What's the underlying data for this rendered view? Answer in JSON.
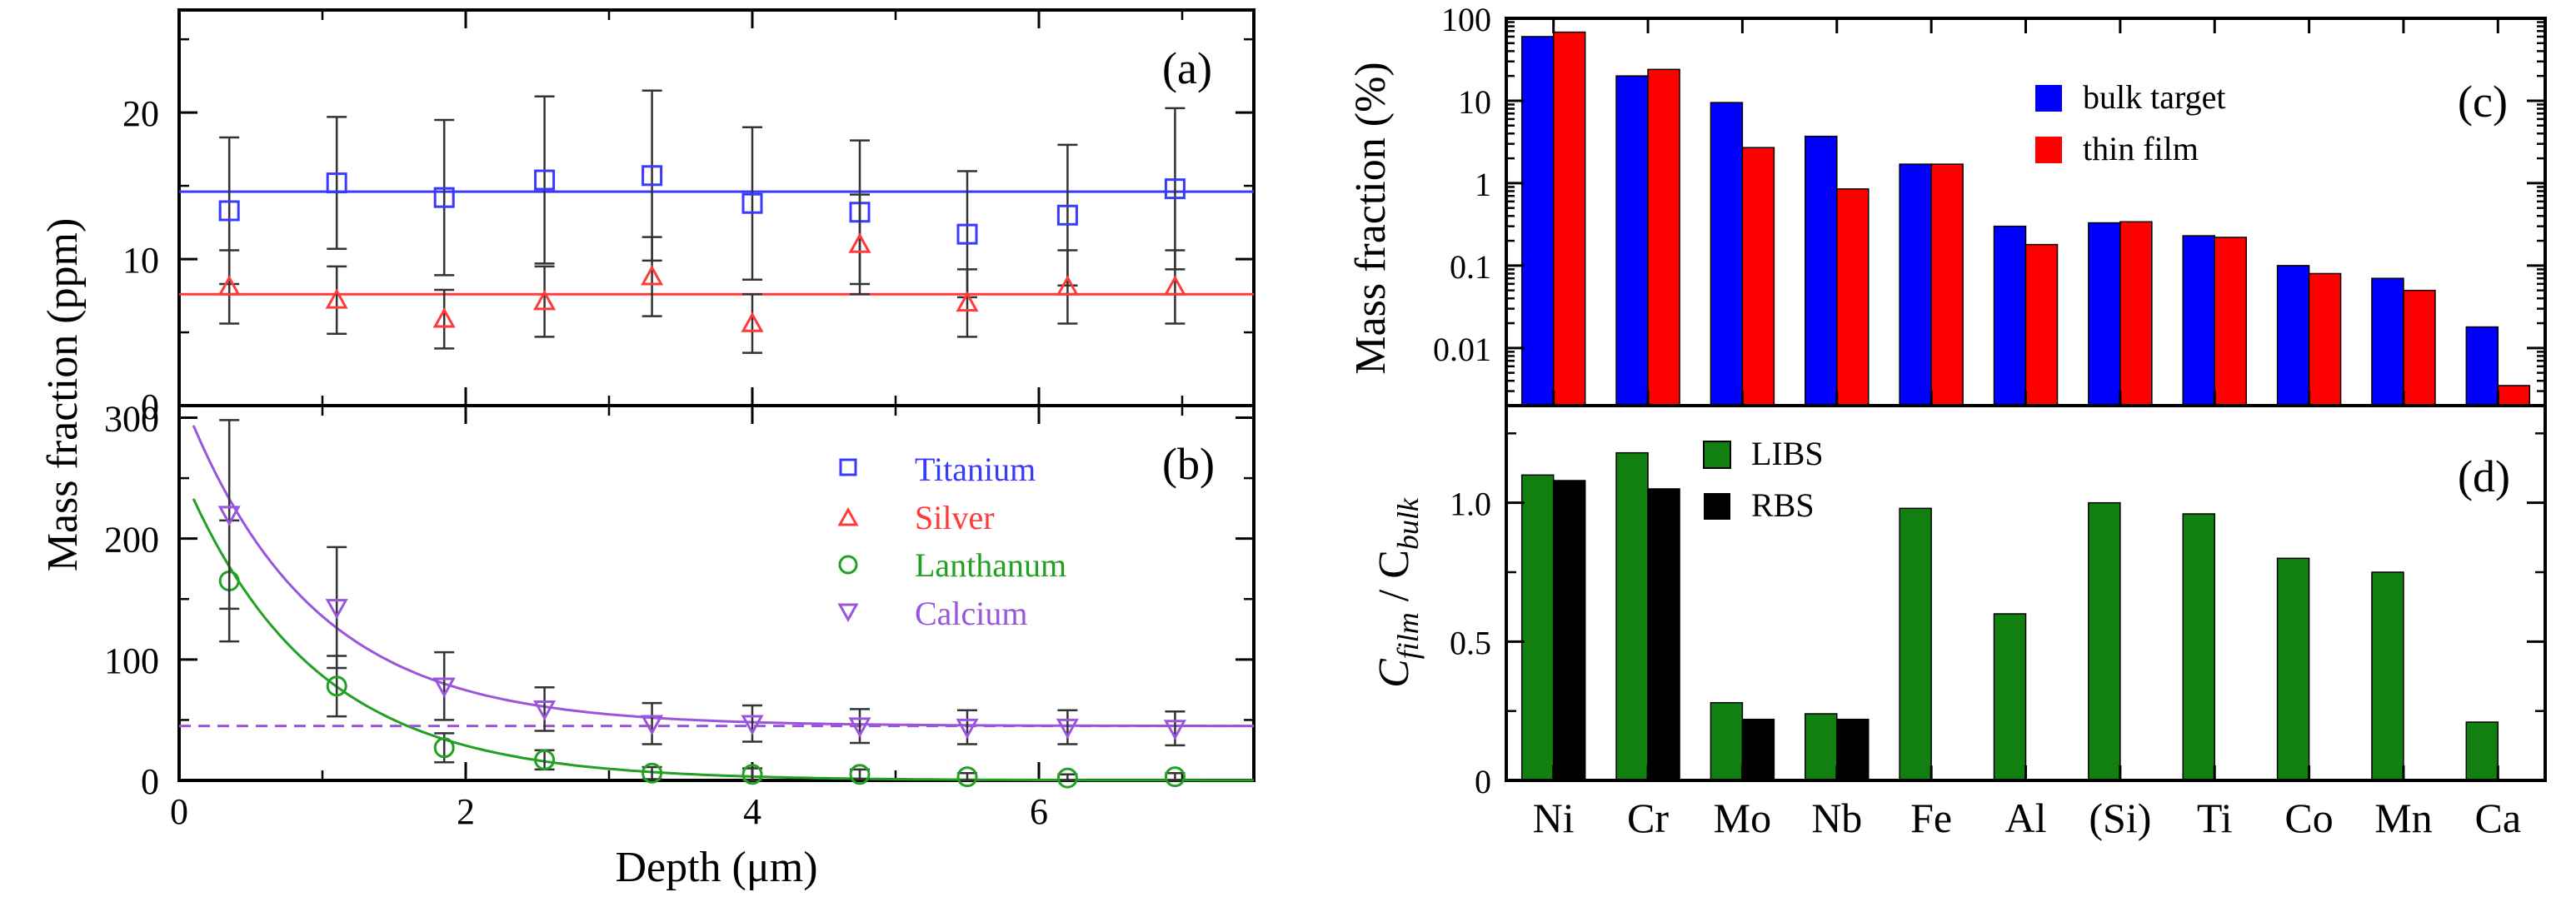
{
  "chart_data": [
    {
      "type": "scatter",
      "panel_label": "(a)",
      "ylim": [
        0,
        27
      ],
      "yticks": [
        0,
        10,
        20
      ],
      "xlim": [
        0,
        7.5
      ],
      "series": [
        {
          "name": "Titanium",
          "color": "#3a3aff",
          "marker": "square",
          "x": [
            0.35,
            1.1,
            1.85,
            2.55,
            3.3,
            4.0,
            4.75,
            5.5,
            6.2,
            6.95
          ],
          "y": [
            13.3,
            15.2,
            14.2,
            15.4,
            15.7,
            13.8,
            13.2,
            11.7,
            13.0,
            14.8
          ],
          "err": [
            5.0,
            4.5,
            5.3,
            5.7,
            5.8,
            5.2,
            4.9,
            4.3,
            4.8,
            5.5
          ],
          "fit_level": 14.6
        },
        {
          "name": "Silver",
          "color": "#ff3a3a",
          "marker": "triangle-up",
          "x": [
            0.35,
            1.1,
            1.85,
            2.55,
            3.3,
            4.0,
            4.75,
            5.5,
            6.2,
            6.95
          ],
          "y": [
            8.1,
            7.2,
            5.9,
            7.1,
            8.8,
            5.6,
            11.0,
            7.0,
            8.1,
            8.1
          ],
          "err": [
            2.5,
            2.3,
            2.0,
            2.4,
            2.7,
            2.0,
            3.4,
            2.3,
            2.5,
            2.5
          ],
          "fit_level": 7.6
        }
      ]
    },
    {
      "type": "scatter",
      "panel_label": "(b)",
      "xlabel": "Depth (μm)",
      "ylabel": "Mass fraction (ppm)",
      "xlim": [
        0,
        7.5
      ],
      "xticks": [
        0,
        2,
        4,
        6
      ],
      "ylim": [
        0,
        310
      ],
      "yticks": [
        0,
        100,
        200,
        300
      ],
      "legend": [
        "Titanium",
        "Silver",
        "Lanthanum",
        "Calcium"
      ],
      "legend_position": "top-right",
      "series": [
        {
          "name": "Lanthanum",
          "color": "#22a022",
          "marker": "circle",
          "x": [
            0.35,
            1.1,
            1.85,
            2.55,
            3.3,
            4.0,
            4.75,
            5.5,
            6.2,
            6.95
          ],
          "y": [
            165,
            78,
            27,
            17,
            6,
            5,
            5,
            3,
            2,
            3
          ],
          "err": [
            50,
            25,
            12,
            8,
            5,
            5,
            4,
            3,
            3,
            3
          ],
          "fit": {
            "model": "exponential",
            "a": 260,
            "b": 1.1,
            "c": 0
          }
        },
        {
          "name": "Calcium",
          "color": "#9a55dd",
          "marker": "triangle-down",
          "x": [
            0.35,
            1.1,
            1.85,
            2.55,
            3.3,
            4.0,
            4.75,
            5.5,
            6.2,
            6.95
          ],
          "y": [
            220,
            143,
            78,
            59,
            47,
            47,
            45,
            44,
            44,
            43
          ],
          "err": [
            78,
            50,
            28,
            18,
            17,
            15,
            14,
            14,
            14,
            14
          ],
          "fit": {
            "model": "exponential",
            "a": 278,
            "b": 1.12,
            "c": 45
          },
          "baseline": 45
        }
      ]
    },
    {
      "type": "bar",
      "panel_label": "(c)",
      "ylabel": "Mass fraction (%)",
      "yscale": "log",
      "ylim": [
        0.002,
        100
      ],
      "yticks": [
        "0.01",
        "0.1",
        "1",
        "10",
        "100"
      ],
      "categories": [
        "Ni",
        "Cr",
        "Mo",
        "Nb",
        "Fe",
        "Al",
        "(Si)",
        "Ti",
        "Co",
        "Mn",
        "Ca"
      ],
      "legend_position": "top-right",
      "series": [
        {
          "name": "bulk target",
          "color": "#0000ff",
          "values": [
            60,
            20,
            9.5,
            3.7,
            1.7,
            0.3,
            0.33,
            0.23,
            0.1,
            0.07,
            0.018
          ]
        },
        {
          "name": "thin film",
          "color": "#ff0000",
          "values": [
            68,
            24,
            2.7,
            0.85,
            1.7,
            0.18,
            0.34,
            0.22,
            0.08,
            0.05,
            0.0035
          ]
        }
      ]
    },
    {
      "type": "bar",
      "panel_label": "(d)",
      "ylabel_main": "C",
      "ylabel_sub1": "film",
      "ylabel_sep": " / C",
      "ylabel_sub2": "bulk",
      "ylim": [
        0,
        1.35
      ],
      "yticks": [
        "0",
        "0.5",
        "1.0"
      ],
      "categories": [
        "Ni",
        "Cr",
        "Mo",
        "Nb",
        "Fe",
        "Al",
        "(Si)",
        "Ti",
        "Co",
        "Mn",
        "Ca"
      ],
      "legend_position": "top-left",
      "series": [
        {
          "name": "LIBS",
          "color": "#118011",
          "values": [
            1.1,
            1.18,
            0.28,
            0.24,
            0.98,
            0.6,
            1.0,
            0.96,
            0.8,
            0.75,
            0.21
          ]
        },
        {
          "name": "RBS",
          "color": "#000000",
          "values": [
            1.08,
            1.05,
            0.22,
            0.22,
            null,
            null,
            null,
            null,
            null,
            null,
            null
          ]
        }
      ]
    }
  ]
}
